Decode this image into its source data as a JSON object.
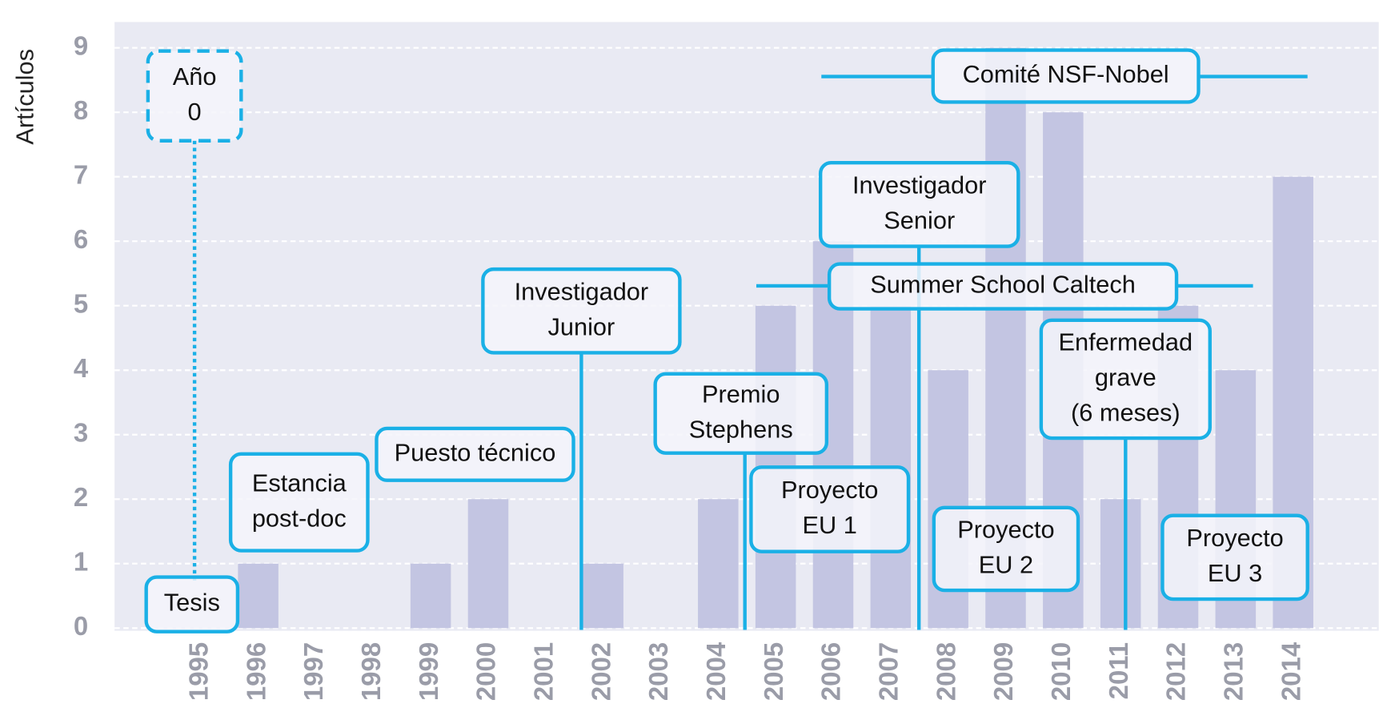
{
  "chart_data": {
    "type": "bar",
    "ylabel": "Artículos",
    "categories": [
      "1995",
      "1996",
      "1997",
      "1998",
      "1999",
      "2000",
      "2001",
      "2002",
      "2003",
      "2004",
      "2005",
      "2006",
      "2007",
      "2008",
      "2009",
      "2010",
      "2011",
      "2012",
      "2013",
      "2014"
    ],
    "values": [
      0,
      1,
      0,
      0,
      1,
      2,
      0,
      1,
      0,
      2,
      5,
      6,
      5,
      4,
      9,
      8,
      2,
      5,
      4,
      7
    ],
    "color": "#c3c5e2",
    "ylim": [
      0,
      9.4
    ],
    "yticks": [
      0,
      1,
      2,
      3,
      4,
      5,
      6,
      7,
      8,
      9
    ],
    "grid": true,
    "annotations": [
      {
        "lines": [
          "Año",
          "0"
        ]
      },
      {
        "lines": [
          "Tesis"
        ]
      },
      {
        "lines": [
          "Estancia",
          "post-doc"
        ]
      },
      {
        "lines": [
          "Puesto técnico"
        ]
      },
      {
        "lines": [
          "Investigador",
          "Junior"
        ]
      },
      {
        "lines": [
          "Premio",
          "Stephens"
        ]
      },
      {
        "lines": [
          "Proyecto",
          "EU 1"
        ]
      },
      {
        "lines": [
          "Investigador",
          "Senior"
        ]
      },
      {
        "lines": [
          "Summer School Caltech"
        ]
      },
      {
        "lines": [
          "Comité NSF-Nobel"
        ]
      },
      {
        "lines": [
          "Enfermedad",
          "grave",
          "(6 meses)"
        ]
      },
      {
        "lines": [
          "Proyecto",
          "EU 2"
        ]
      },
      {
        "lines": [
          "Proyecto",
          "EU 3"
        ]
      }
    ]
  }
}
